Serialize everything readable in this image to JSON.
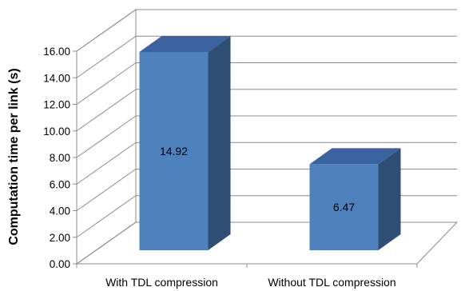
{
  "chart_data": {
    "type": "bar",
    "style": "3d-column",
    "categories": [
      "With TDL compression",
      "Without TDL compression"
    ],
    "values": [
      14.92,
      6.47
    ],
    "data_labels": [
      "14.92",
      "6.47"
    ],
    "title": "",
    "xlabel": "",
    "ylabel": "Computation time per link (s)",
    "ylim": [
      0,
      16
    ],
    "yticks": [
      "0.00",
      "2.00",
      "4.00",
      "6.00",
      "8.00",
      "10.00",
      "12.00",
      "14.00",
      "16.00"
    ],
    "grid": true,
    "legend": "none",
    "bar_color": "#4f81bd"
  }
}
